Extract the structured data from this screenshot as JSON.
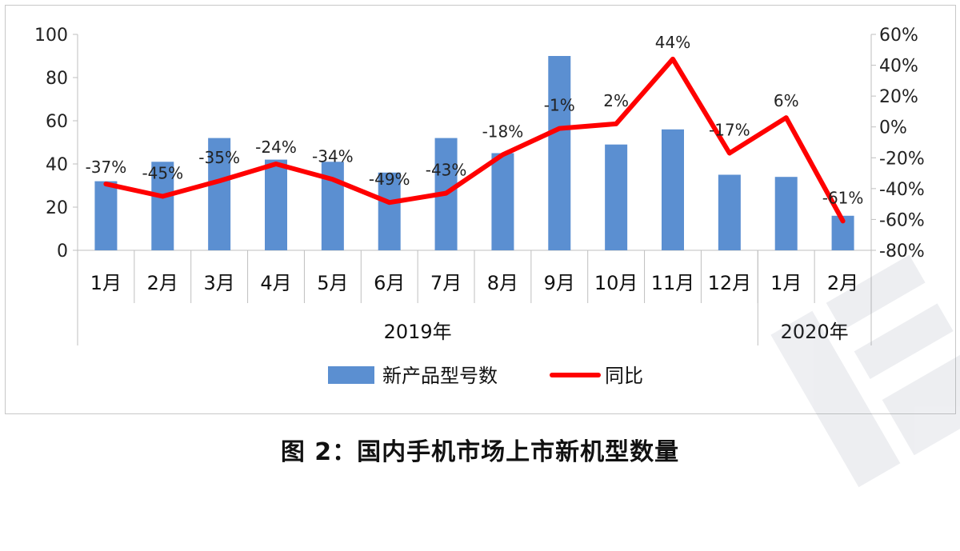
{
  "caption": "图 2：国内手机市场上市新机型数量",
  "chart_data": {
    "type": "bar",
    "categories": [
      "1月",
      "2月",
      "3月",
      "4月",
      "5月",
      "6月",
      "7月",
      "8月",
      "9月",
      "10月",
      "11月",
      "12月",
      "1月",
      "2月"
    ],
    "year_groups": [
      {
        "label": "2019年",
        "span": 12
      },
      {
        "label": "2020年",
        "span": 2
      }
    ],
    "series": [
      {
        "name": "新产品型号数",
        "type": "bar",
        "axis": "left",
        "color": "#5b8fd1",
        "values": [
          32,
          41,
          52,
          42,
          41,
          36,
          52,
          45,
          90,
          49,
          56,
          35,
          34,
          16
        ]
      },
      {
        "name": "同比",
        "type": "line",
        "axis": "right",
        "color": "#ff0000",
        "values": [
          -37,
          -45,
          -35,
          -24,
          -34,
          -49,
          -43,
          -18,
          -1,
          2,
          44,
          -17,
          6,
          -61
        ],
        "labels": [
          "-37%",
          "-45%",
          "-35%",
          "-24%",
          "-34%",
          "-49%",
          "-43%",
          "-18%",
          "-1%",
          "2%",
          "44%",
          "-17%",
          "6%",
          "-61%"
        ]
      }
    ],
    "left_axis": {
      "min": 0,
      "max": 100,
      "ticks": [
        "0",
        "20",
        "40",
        "60",
        "80",
        "100"
      ]
    },
    "right_axis": {
      "min": -80,
      "max": 60,
      "ticks": [
        "-80%",
        "-60%",
        "-40%",
        "-20%",
        "0%",
        "20%",
        "40%",
        "60%"
      ]
    },
    "legend_position": "bottom",
    "grid": false
  }
}
